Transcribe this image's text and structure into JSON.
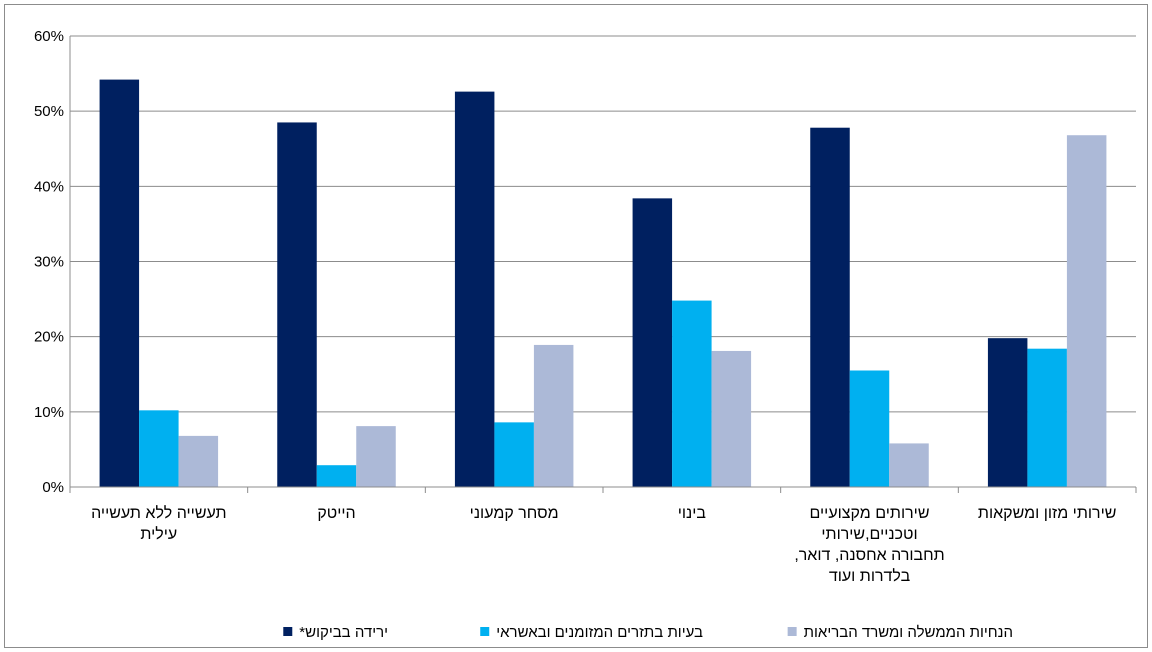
{
  "chart_data": {
    "type": "bar",
    "categories": [
      [
        "תעשייה ללא תעשייה",
        "עילית"
      ],
      [
        "הייטק"
      ],
      [
        "מסחר קמעוני"
      ],
      [
        "בינוי"
      ],
      [
        "שירותים מקצועיים",
        "וטכניים,שירותי",
        "תחבורה אחסנה, דואר,",
        "בלדרות ועוד"
      ],
      [
        "שירותי מזון ומשקאות"
      ]
    ],
    "series": [
      {
        "name": "ירידה בביקוש*",
        "color": "#002060",
        "values": [
          54.2,
          48.5,
          52.6,
          38.4,
          47.8,
          19.8
        ]
      },
      {
        "name": "בעיות בתזרים המזומנים ובאשראי",
        "color": "#00b0f0",
        "values": [
          10.2,
          2.9,
          8.6,
          24.8,
          15.5,
          18.4
        ]
      },
      {
        "name": "הנחיות הממשלה ומשרד הבריאות",
        "color": "#acb9d7",
        "values": [
          6.8,
          8.1,
          18.9,
          18.1,
          5.8,
          46.8
        ]
      }
    ],
    "ylim": [
      0,
      60
    ],
    "yticks": [
      "0%",
      "10%",
      "20%",
      "30%",
      "40%",
      "50%",
      "60%"
    ],
    "grid": true,
    "legend": "bottom"
  }
}
